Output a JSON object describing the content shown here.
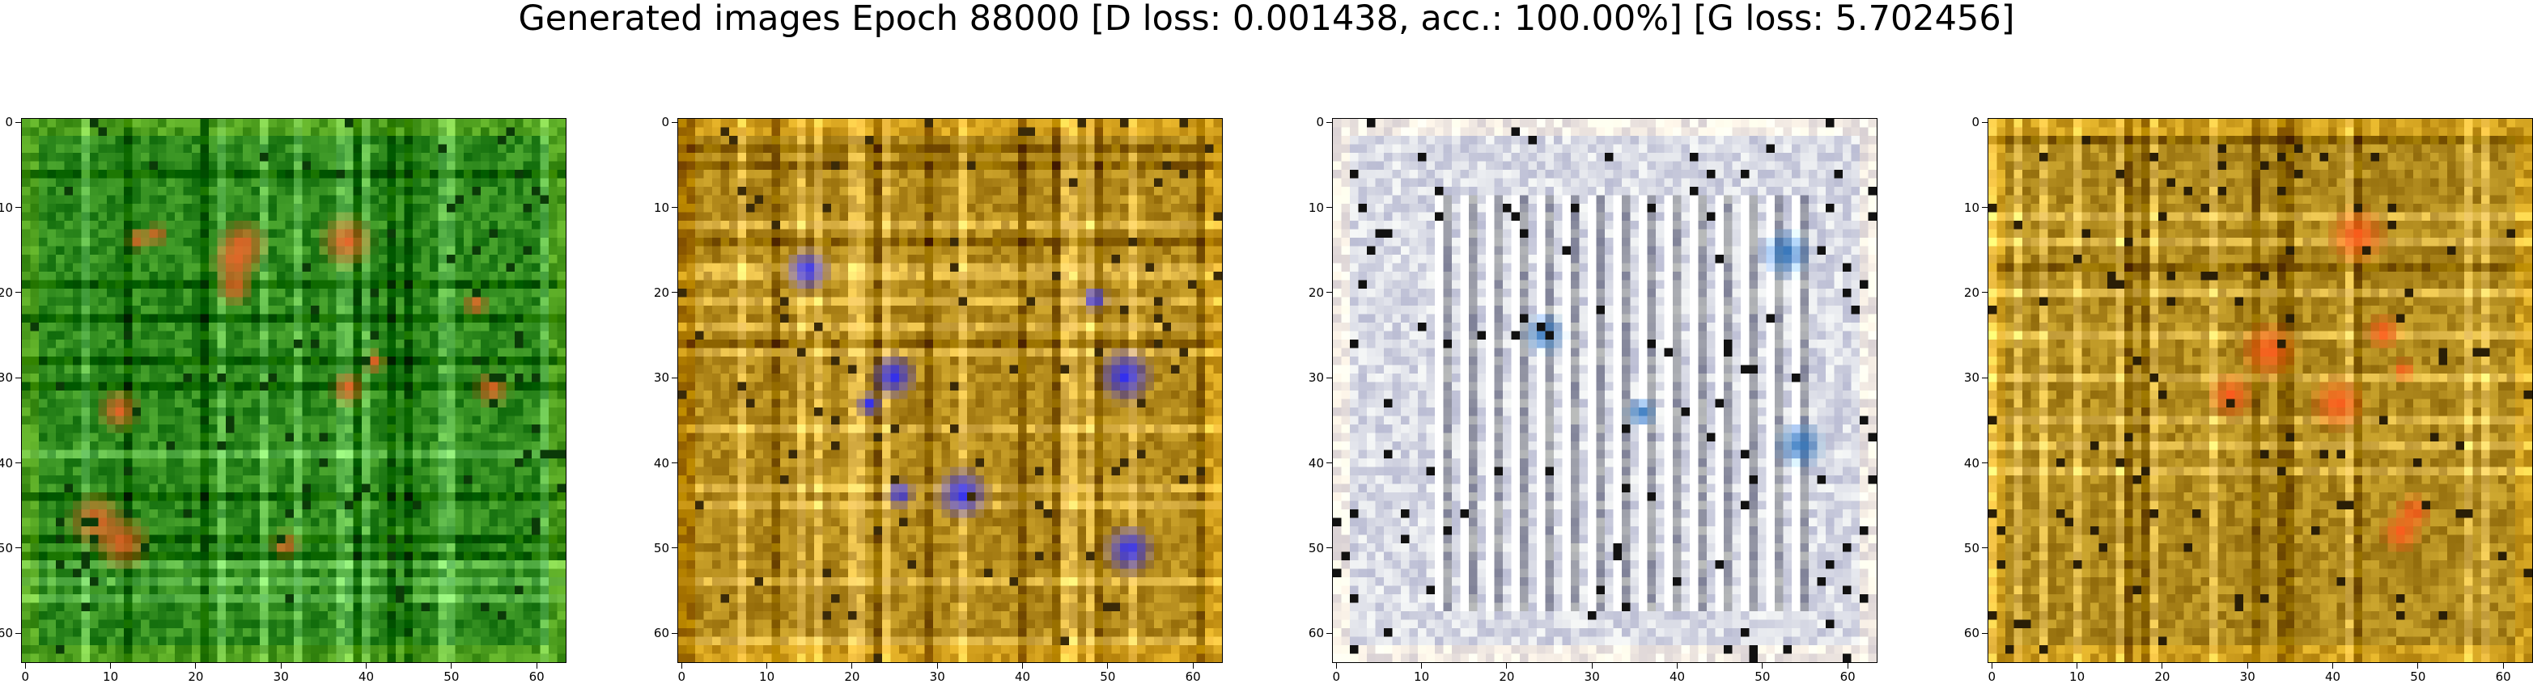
{
  "title": "Generated images Epoch 88000 [D loss: 0.001438, acc.: 100.00%] [G loss: 5.702456]",
  "axis": {
    "x_ticks": [
      "0",
      "10",
      "20",
      "30",
      "40",
      "50",
      "60"
    ],
    "y_ticks": [
      "0",
      "10",
      "20",
      "30",
      "40",
      "50",
      "60"
    ],
    "range": [
      0,
      63
    ]
  },
  "panels": [
    {
      "id": "sample-1",
      "palette": {
        "base": "#2f8a1e",
        "accent": "#f0642a",
        "dark": "#0b3a08"
      }
    },
    {
      "id": "sample-2",
      "palette": {
        "base": "#b38a1c",
        "accent": "#2b2bff",
        "dark": "#3a2a08"
      }
    },
    {
      "id": "sample-3",
      "palette": {
        "base": "#d9dbe6",
        "accent": "#2a6fb8",
        "dark": "#111111"
      }
    },
    {
      "id": "sample-4",
      "palette": {
        "base": "#b08a1e",
        "accent": "#ff5a1e",
        "dark": "#2a1e06"
      }
    }
  ]
}
